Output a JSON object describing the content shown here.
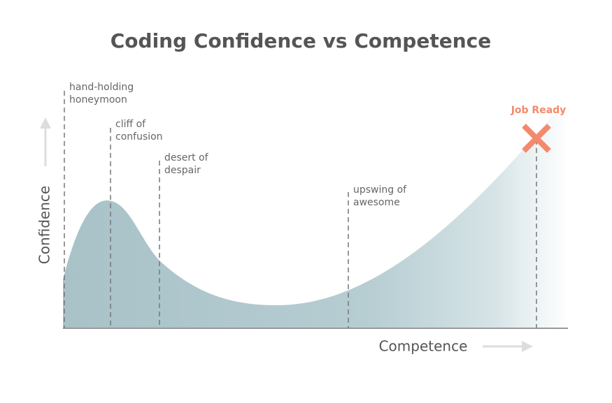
{
  "title": "Coding Confidence vs Competence",
  "y_axis_label": "Confidence",
  "x_axis_label": "Competence",
  "annotations": [
    {
      "lines": [
        "hand-holding",
        "honeymoon"
      ]
    },
    {
      "lines": [
        "cliff of",
        "confusion"
      ]
    },
    {
      "lines": [
        "desert of",
        "despair"
      ]
    },
    {
      "lines": [
        "upswing of",
        "awesome"
      ]
    }
  ],
  "marker_label": "Job Ready"
}
